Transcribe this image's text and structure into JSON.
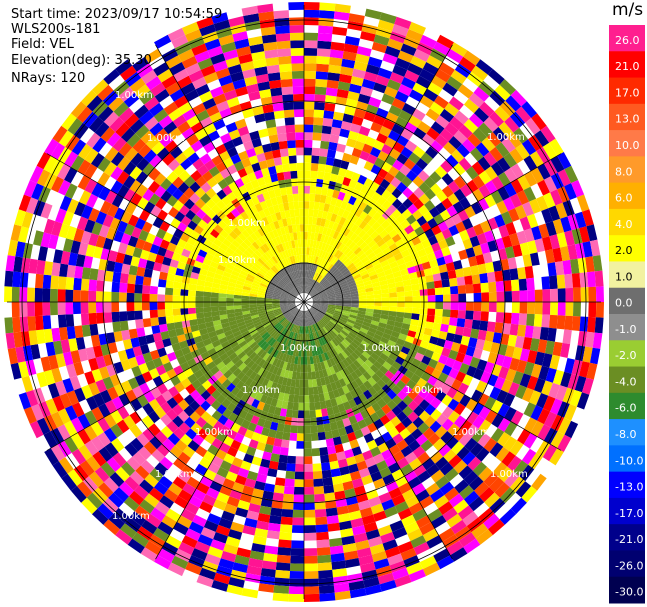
{
  "header": {
    "start_time": "Start time: 2023/09/17 10:54:59",
    "instrument": "WLS200s-181",
    "field": "Field: VEL",
    "elevation": "Elevation(deg): 35.30",
    "nrays": "NRays: 120"
  },
  "chart_data": {
    "type": "ppi-polar",
    "field": "VEL",
    "units": "m/s",
    "nrays": 120,
    "elevation_deg": 35.3,
    "ring_labels": [
      "1.00km",
      "1.00km",
      "1.00km",
      "1.00km",
      "1.00km",
      "1.00km",
      "1.00km",
      "1.00km",
      "1.00km",
      "1.00km",
      "1.00km",
      "1.00km",
      "1.00km",
      "1.00km"
    ],
    "colorbar": {
      "title": "m/s",
      "levels": [
        {
          "label": "26.0",
          "color": "#ff1f8f"
        },
        {
          "label": "21.0",
          "color": "#ff0000"
        },
        {
          "label": "17.0",
          "color": "#ff2a00"
        },
        {
          "label": "13.0",
          "color": "#ff5a20"
        },
        {
          "label": "10.0",
          "color": "#ff7a48"
        },
        {
          "label": "8.0",
          "color": "#ff9a2a"
        },
        {
          "label": "6.0",
          "color": "#ffb000"
        },
        {
          "label": "4.0",
          "color": "#ffd800"
        },
        {
          "label": "2.0",
          "color": "#ffff00"
        },
        {
          "label": "1.0",
          "color": "#f2f2a0"
        },
        {
          "label": "0.0",
          "color": "#6e6e6e"
        },
        {
          "label": "-1.0",
          "color": "#8e8e8e"
        },
        {
          "label": "-2.0",
          "color": "#9acd32"
        },
        {
          "label": "-4.0",
          "color": "#6b8e23"
        },
        {
          "label": "-6.0",
          "color": "#2e8b2e"
        },
        {
          "label": "-8.0",
          "color": "#1e90ff"
        },
        {
          "label": "-10.0",
          "color": "#0070ff"
        },
        {
          "label": "-13.0",
          "color": "#0000ff"
        },
        {
          "label": "-17.0",
          "color": "#0000cd"
        },
        {
          "label": "-21.0",
          "color": "#00008b"
        },
        {
          "label": "-26.0",
          "color": "#000070"
        },
        {
          "label": "-30.0",
          "color": "#000050"
        }
      ]
    }
  }
}
